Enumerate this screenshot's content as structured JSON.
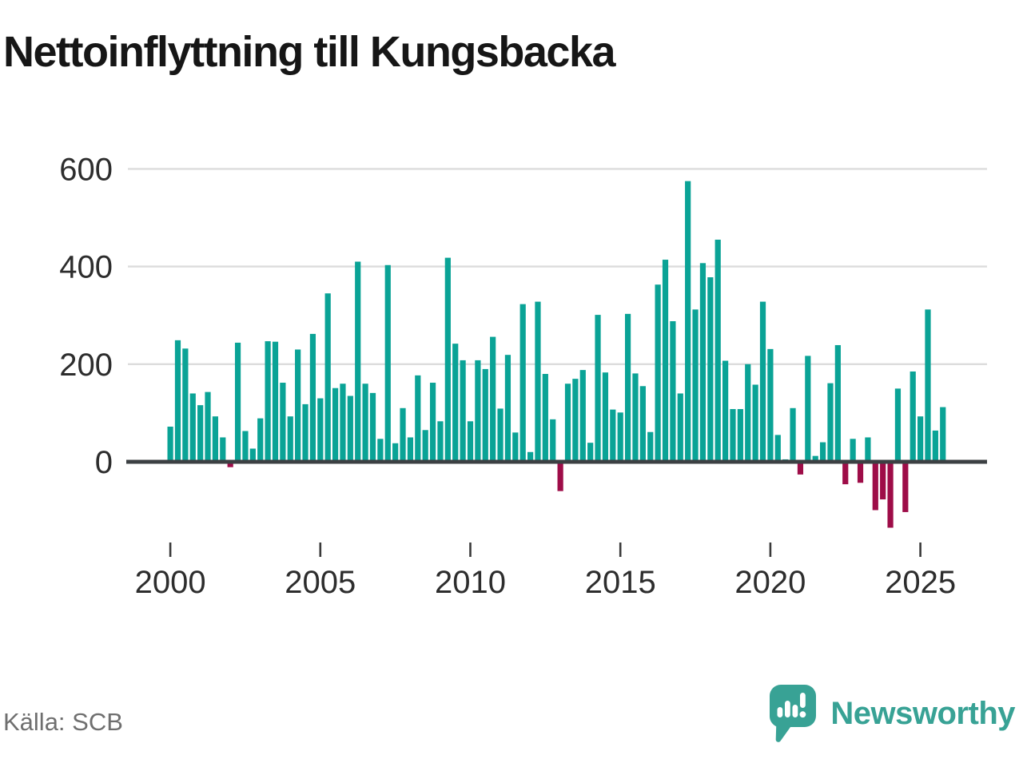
{
  "title": "Nettoinflyttning till Kungsbacka",
  "source": "Källa: SCB",
  "brand": {
    "name": "Newsworthy",
    "icon": "speech-bubble-bar-chart-icon",
    "color": "#38a295"
  },
  "colors": {
    "positive_bar": "#0aa396",
    "negative_bar": "#9e0d48",
    "grid": "#dcdcdc",
    "zero_line": "#3c4043",
    "tick": "#3a3a3a",
    "axis_text": "#2d2d2d",
    "title_text": "#161616",
    "source_text": "#6f6f6f"
  },
  "chart_data": {
    "type": "bar",
    "title": "Nettoinflyttning till Kungsbacka",
    "frequency": "quarterly",
    "start_year": 2000,
    "end_year": 2025,
    "x_tick_labels": [
      "2000",
      "2005",
      "2010",
      "2015",
      "2020",
      "2025"
    ],
    "y_ticks": [
      0,
      200,
      400,
      600
    ],
    "ylim": [
      -180,
      650
    ],
    "grid": "horizontal",
    "legend": "none",
    "values": [
      72,
      249,
      232,
      140,
      116,
      143,
      93,
      50,
      -11,
      244,
      63,
      27,
      89,
      247,
      246,
      162,
      93,
      230,
      118,
      262,
      130,
      345,
      151,
      160,
      135,
      410,
      160,
      141,
      47,
      403,
      38,
      110,
      50,
      177,
      65,
      162,
      83,
      418,
      242,
      208,
      83,
      208,
      190,
      256,
      109,
      219,
      60,
      323,
      20,
      328,
      180,
      87,
      -60,
      160,
      170,
      188,
      39,
      301,
      183,
      107,
      101,
      303,
      181,
      155,
      61,
      363,
      414,
      288,
      140,
      575,
      312,
      407,
      378,
      455,
      207,
      108,
      108,
      200,
      158,
      328,
      231,
      55,
      5,
      110,
      -26,
      217,
      12,
      40,
      161,
      239,
      -46,
      47,
      -43,
      50,
      -99,
      -77,
      -135,
      150,
      -103,
      185,
      93,
      312,
      64,
      112
    ]
  }
}
